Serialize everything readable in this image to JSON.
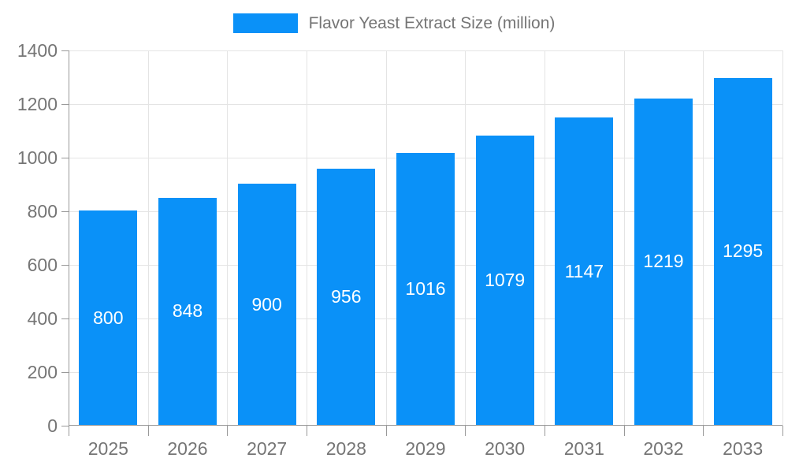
{
  "chart_data": {
    "type": "bar",
    "title": "Flavor Yeast Extract Size (million)",
    "categories": [
      "2025",
      "2026",
      "2027",
      "2028",
      "2029",
      "2030",
      "2031",
      "2032",
      "2033"
    ],
    "values": [
      800,
      848,
      900,
      956,
      1016,
      1079,
      1147,
      1219,
      1295
    ],
    "xlabel": "",
    "ylabel": "",
    "ylim": [
      0,
      1400
    ],
    "ytick_step": 200,
    "yticks": [
      0,
      200,
      400,
      600,
      800,
      1000,
      1200,
      1400
    ],
    "grid": true,
    "legend_position": "top-center",
    "value_label_position": "inside-center"
  },
  "colors": {
    "bar": "#0a91f8",
    "axis": "#999999",
    "grid": "#e4e4e4",
    "tick_label": "#757575",
    "legend_text": "#757575",
    "value_label": "#ffffff",
    "background": "#ffffff"
  }
}
